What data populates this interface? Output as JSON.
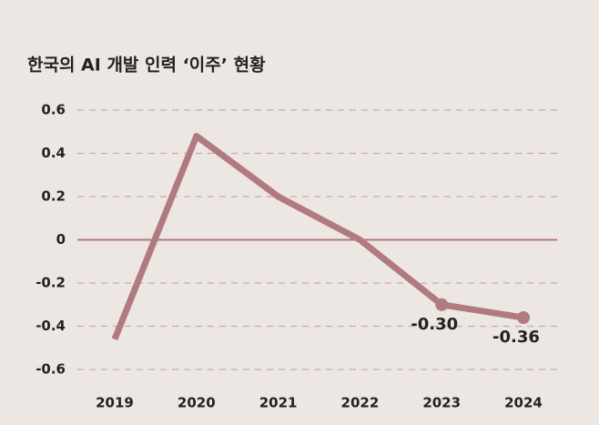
{
  "chart_data": {
    "type": "line",
    "title": "한국의 AI 개발 인력 ‘이주’ 현황",
    "categories": [
      "2019",
      "2020",
      "2021",
      "2022",
      "2023",
      "2024"
    ],
    "values": [
      -0.46,
      0.48,
      0.2,
      0,
      -0.3,
      -0.36
    ],
    "value_labels": [
      null,
      null,
      null,
      null,
      "-0.30",
      "-0.36"
    ],
    "color": "#b07a80",
    "ylim": [
      -0.6,
      0.6
    ],
    "yticks": [
      -0.6,
      -0.4,
      -0.2,
      0,
      0.2,
      0.4,
      0.6
    ],
    "grid": true
  }
}
